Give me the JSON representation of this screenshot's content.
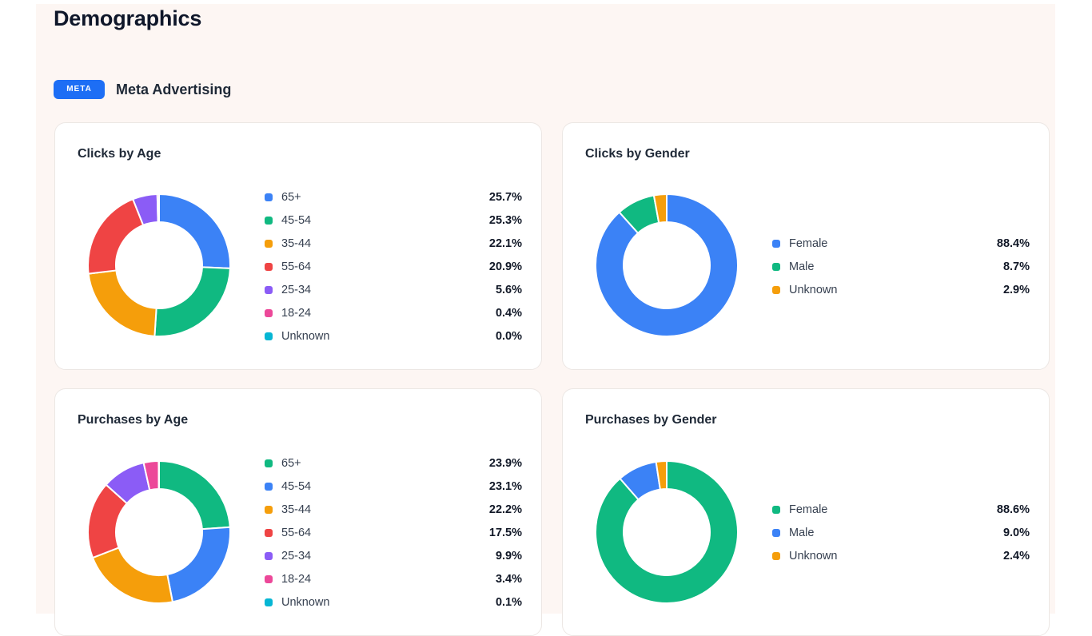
{
  "page": {
    "title": "Demographics"
  },
  "section": {
    "badge": "META",
    "title": "Meta Advertising"
  },
  "colors": {
    "blue": "#3b82f6",
    "green": "#10b981",
    "orange": "#f59e0b",
    "red": "#ef4444",
    "purple": "#8b5cf6",
    "pink": "#ec4899",
    "cyan": "#06b6d4"
  },
  "chart_data": [
    {
      "type": "pie",
      "title": "Clicks by Age",
      "slices": [
        {
          "label": "65+",
          "value": 25.7,
          "display": "25.7%",
          "color": "#3b82f6"
        },
        {
          "label": "45-54",
          "value": 25.3,
          "display": "25.3%",
          "color": "#10b981"
        },
        {
          "label": "35-44",
          "value": 22.1,
          "display": "22.1%",
          "color": "#f59e0b"
        },
        {
          "label": "55-64",
          "value": 20.9,
          "display": "20.9%",
          "color": "#ef4444"
        },
        {
          "label": "25-34",
          "value": 5.6,
          "display": "5.6%",
          "color": "#8b5cf6"
        },
        {
          "label": "18-24",
          "value": 0.4,
          "display": "0.4%",
          "color": "#ec4899"
        },
        {
          "label": "Unknown",
          "value": 0.0,
          "display": "0.0%",
          "color": "#06b6d4"
        }
      ]
    },
    {
      "type": "pie",
      "title": "Clicks by Gender",
      "slices": [
        {
          "label": "Female",
          "value": 88.4,
          "display": "88.4%",
          "color": "#3b82f6"
        },
        {
          "label": "Male",
          "value": 8.7,
          "display": "8.7%",
          "color": "#10b981"
        },
        {
          "label": "Unknown",
          "value": 2.9,
          "display": "2.9%",
          "color": "#f59e0b"
        }
      ]
    },
    {
      "type": "pie",
      "title": "Purchases by Age",
      "slices": [
        {
          "label": "65+",
          "value": 23.9,
          "display": "23.9%",
          "color": "#10b981"
        },
        {
          "label": "45-54",
          "value": 23.1,
          "display": "23.1%",
          "color": "#3b82f6"
        },
        {
          "label": "35-44",
          "value": 22.2,
          "display": "22.2%",
          "color": "#f59e0b"
        },
        {
          "label": "55-64",
          "value": 17.5,
          "display": "17.5%",
          "color": "#ef4444"
        },
        {
          "label": "25-34",
          "value": 9.9,
          "display": "9.9%",
          "color": "#8b5cf6"
        },
        {
          "label": "18-24",
          "value": 3.4,
          "display": "3.4%",
          "color": "#ec4899"
        },
        {
          "label": "Unknown",
          "value": 0.1,
          "display": "0.1%",
          "color": "#06b6d4"
        }
      ]
    },
    {
      "type": "pie",
      "title": "Purchases by Gender",
      "slices": [
        {
          "label": "Female",
          "value": 88.6,
          "display": "88.6%",
          "color": "#10b981"
        },
        {
          "label": "Male",
          "value": 9.0,
          "display": "9.0%",
          "color": "#3b82f6"
        },
        {
          "label": "Unknown",
          "value": 2.4,
          "display": "2.4%",
          "color": "#f59e0b"
        }
      ]
    }
  ]
}
